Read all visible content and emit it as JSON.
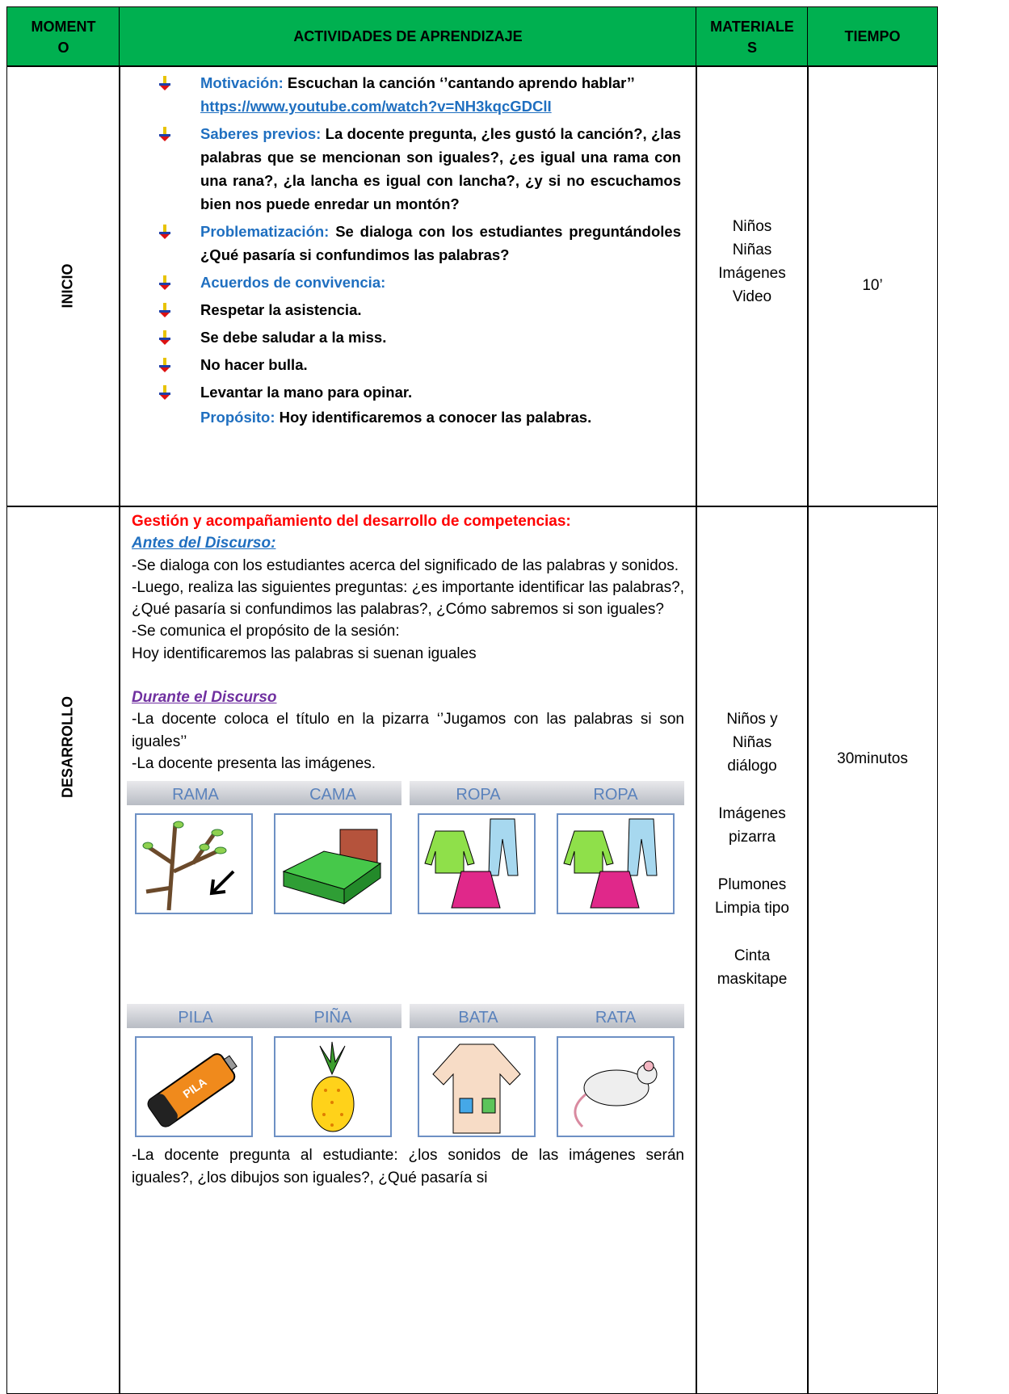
{
  "header": {
    "moment": "MOMENTO",
    "activities": "ACTIVIDADES DE APRENDIZAJE",
    "materials": "MATERIALES",
    "time": "TIEMPO"
  },
  "inicio": {
    "moment": "INICIO",
    "items": [
      {
        "label": "Motivación:",
        "text": "Escuchan la canción ‘’cantando aprendo hablar’’",
        "link": "https://www.youtube.com/watch?v=NH3kqcGDClI"
      },
      {
        "label": "Saberes previos:",
        "text": "La docente pregunta, ¿les gustó la canción?, ¿las palabras que se mencionan son iguales?, ¿es igual una rama con una rana?, ¿la lancha es igual con lancha?, ¿y si no escuchamos bien nos puede enredar un montón?"
      },
      {
        "label": "Problematización:",
        "text": "Se dialoga con los estudiantes preguntándoles ¿Qué pasaría si confundimos las palabras?"
      },
      {
        "label": "Acuerdos de convivencia:"
      },
      {
        "text": "Respetar la asistencia."
      },
      {
        "text": "Se debe saludar a la miss."
      },
      {
        "text": "No hacer bulla."
      },
      {
        "text": "Levantar la mano para opinar."
      }
    ],
    "purpose": {
      "label": "Propósito:",
      "text": "Hoy identificaremos a conocer las palabras."
    },
    "materials": [
      "Niños",
      "Niñas",
      "Imágenes",
      "Video"
    ],
    "time": "10’"
  },
  "desarrollo": {
    "moment": "DESARROLLO",
    "heading": "Gestión y acompañamiento del desarrollo de competencias:",
    "before": {
      "title": "Antes del Discurso:",
      "paragraphs": [
        "-Se dialoga con los estudiantes acerca del significado de las palabras y sonidos.",
        "-Luego, realiza las siguientes preguntas: ¿es importante identificar las palabras?, ¿Qué pasaría si confundimos las palabras?, ¿Cómo sabremos si son iguales?",
        "-Se comunica el propósito de la sesión:",
        "Hoy identificaremos las palabras si suenan iguales"
      ]
    },
    "during": {
      "title": "Durante el Discurso",
      "paragraphs": [
        "-La docente coloca el título en la pizarra ‘’Jugamos con las palabras si son iguales’’",
        "-La docente presenta las imágenes."
      ]
    },
    "images": {
      "rows": [
        {
          "cards": [
            {
              "caption": "RAMA"
            },
            {
              "caption": "CAMA"
            },
            {
              "caption": "ROPA"
            },
            {
              "caption": "ROPA"
            }
          ]
        },
        {
          "cards": [
            {
              "caption": "PILA",
              "icon_text": "PILA"
            },
            {
              "caption": "PIÑA"
            },
            {
              "caption": "BATA"
            },
            {
              "caption": "RATA"
            }
          ]
        }
      ]
    },
    "closing": "-La docente pregunta al estudiante: ¿los sonidos de las imágenes serán iguales?, ¿los dibujos son iguales?, ¿Qué pasaría si",
    "materials": [
      [
        "Niños y",
        "Niñas",
        "diálogo"
      ],
      [
        "Imágenes",
        "pizarra"
      ],
      [
        "Plumones",
        "Limpia tipo"
      ],
      [
        "Cinta",
        "maskitape"
      ]
    ],
    "time": "30minutos"
  }
}
